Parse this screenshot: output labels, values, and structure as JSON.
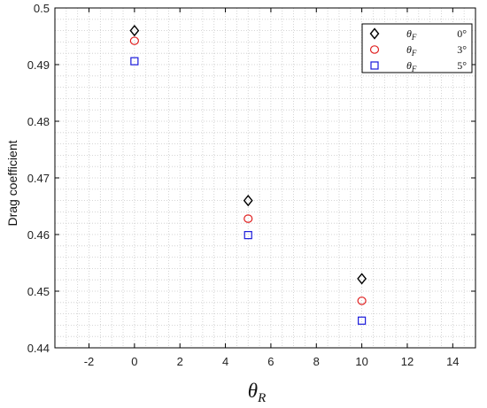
{
  "chart_data": {
    "type": "scatter",
    "xlabel": "θ",
    "xlabel_sub": "R",
    "ylabel": "Drag coefficient",
    "xlim": [
      -3.5,
      15
    ],
    "ylim": [
      0.44,
      0.5
    ],
    "xticks": [
      "-2",
      "0",
      "2",
      "4",
      "6",
      "8",
      "10",
      "12",
      "14"
    ],
    "xtick_values": [
      -2,
      0,
      2,
      4,
      6,
      8,
      10,
      12,
      14
    ],
    "yticks": [
      "0.44",
      "0.45",
      "0.46",
      "0.47",
      "0.48",
      "0.49",
      "0.5"
    ],
    "ytick_values": [
      0.44,
      0.45,
      0.46,
      0.47,
      0.48,
      0.49,
      0.5
    ],
    "minor_grid": true,
    "legend_position": "top-right",
    "series": [
      {
        "label_symbol": "θ",
        "label_sub": "F",
        "label_value": "0°",
        "marker": "diamond",
        "color": "#000000",
        "x": [
          0,
          5,
          10
        ],
        "y": [
          0.496,
          0.466,
          0.4522
        ]
      },
      {
        "label_symbol": "θ",
        "label_sub": "F",
        "label_value": "3°",
        "marker": "circle",
        "color": "#e02020",
        "x": [
          0,
          5,
          10
        ],
        "y": [
          0.4942,
          0.4628,
          0.4483
        ]
      },
      {
        "label_symbol": "θ",
        "label_sub": "F",
        "label_value": "5°",
        "marker": "square",
        "color": "#1a1adb",
        "x": [
          0,
          5,
          10
        ],
        "y": [
          0.4906,
          0.4599,
          0.4448
        ]
      }
    ]
  }
}
